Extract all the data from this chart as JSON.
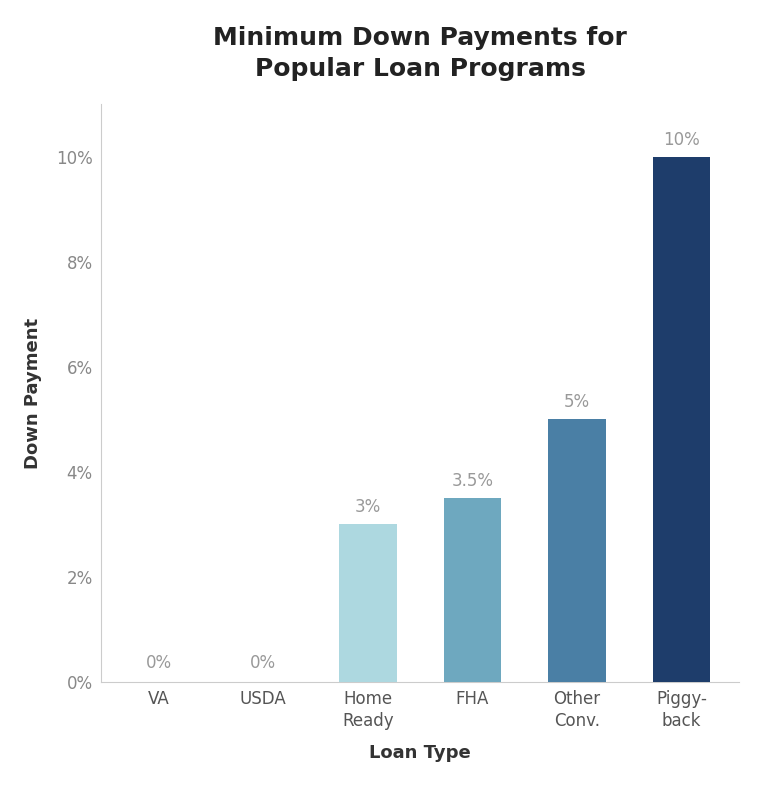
{
  "title": "Minimum Down Payments for\nPopular Loan Programs",
  "categories": [
    "VA",
    "USDA",
    "Home\nReady",
    "FHA",
    "Other\nConv.",
    "Piggy-\nback"
  ],
  "values": [
    0,
    0,
    3,
    3.5,
    5,
    10
  ],
  "labels": [
    "0%",
    "0%",
    "3%",
    "3.5%",
    "5%",
    "10%"
  ],
  "bar_colors": [
    "#c8e4ec",
    "#c8e4ec",
    "#add8e0",
    "#6ea8bf",
    "#4a7fa5",
    "#1e3d6b"
  ],
  "xlabel": "Loan Type",
  "ylabel": "Down Payment",
  "ylim": [
    0,
    11
  ],
  "yticks": [
    0,
    2,
    4,
    6,
    8,
    10
  ],
  "ytick_labels": [
    "0%",
    "2%",
    "4%",
    "6%",
    "8%",
    "10%"
  ],
  "background_color": "#ffffff",
  "title_fontsize": 18,
  "label_fontsize": 13,
  "tick_fontsize": 12,
  "bar_label_fontsize": 12,
  "bar_label_color": "#999999",
  "axis_color": "#cccccc",
  "text_color": "#333333",
  "ylabel_color": "#444444"
}
